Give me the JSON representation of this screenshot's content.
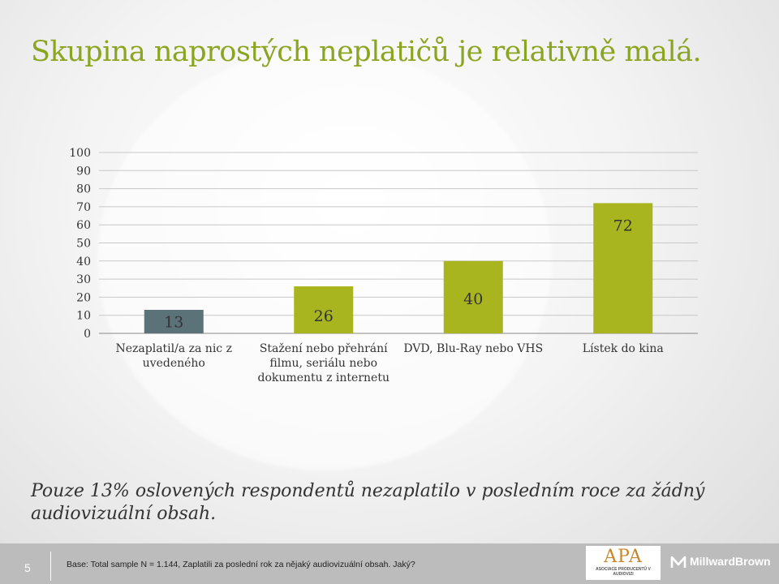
{
  "title": "Skupina naprostých neplatičů je relativně malá.",
  "summary": "Pouze 13% oslovených respondentů nezaplatilo v posledním roce za žádný audiovizuální obsah.",
  "footer": {
    "page_number": "5",
    "base_note": "Base: Total sample N = 1.144, Zaplatili za poslední rok za nějaký audiovizuální obsah. Jaký?",
    "apa_logo_letters": "APA",
    "apa_logo_sub": "ASOCIACE PRODUCENTŮ V AUDIOVIZI",
    "millward_brown": "MillwardBrown"
  },
  "chart_data": {
    "type": "bar",
    "title": "",
    "xlabel": "",
    "ylabel": "",
    "ylim": [
      0,
      100
    ],
    "yticks": [
      "0",
      "10",
      "20",
      "30",
      "40",
      "50",
      "60",
      "70",
      "80",
      "90",
      "100"
    ],
    "grid": true,
    "categories": [
      [
        "Nezaplatil/a za nic z",
        "uvedeného"
      ],
      [
        "Stažení nebo přehrání",
        "filmu, seriálu nebo",
        "dokumentu z internetu"
      ],
      [
        "DVD, Blu-Ray nebo VHS"
      ],
      [
        "Lístek do kina"
      ]
    ],
    "values": [
      13,
      26,
      40,
      72
    ],
    "value_labels": [
      "13",
      "26",
      "40",
      "72"
    ],
    "colors": [
      "#5c7279",
      "#a8b51f",
      "#a8b51f",
      "#a8b51f"
    ]
  }
}
